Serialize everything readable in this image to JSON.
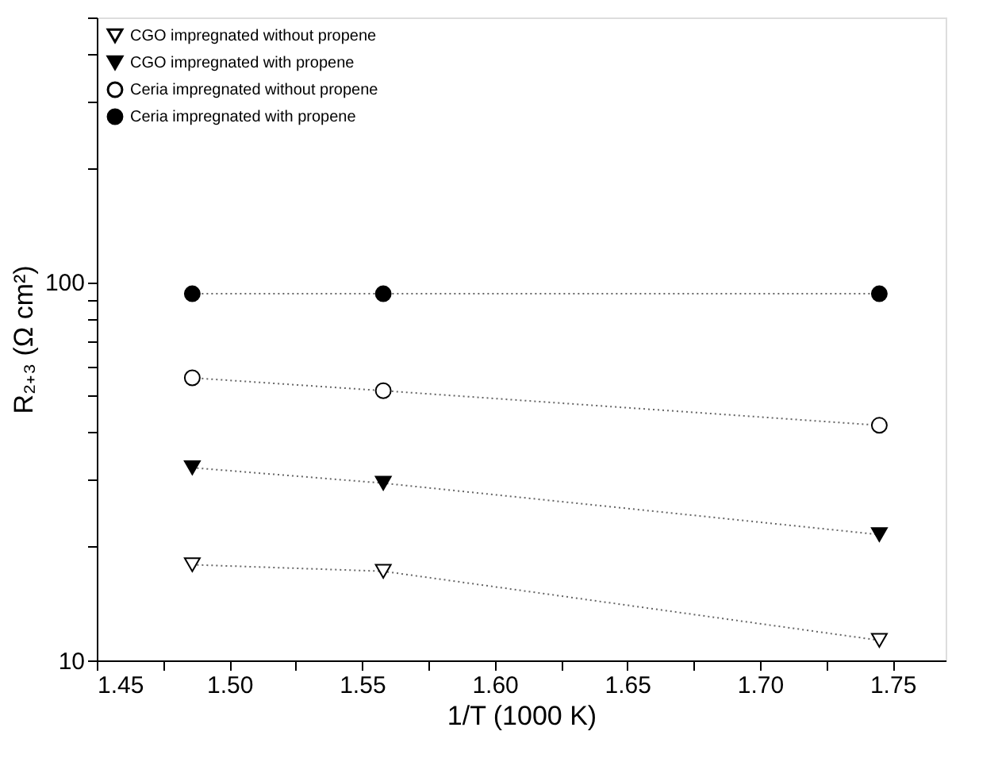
{
  "chart_data": {
    "type": "line",
    "xlabel": "1/T (1000 K)",
    "ylabel": "R₂₊₃ (Ω cm²)",
    "x": [
      1.486,
      1.558,
      1.745
    ],
    "series": [
      {
        "name": "CGO impregnated without propene",
        "color": "#ffffff",
        "marker": "triangle-down",
        "values": [
          17.9,
          17.2,
          11.3
        ]
      },
      {
        "name": "CGO impregnated with propene",
        "color": "#000000",
        "marker": "triangle-down",
        "values": [
          32.3,
          29.4,
          21.5
        ]
      },
      {
        "name": "Ceria impregnated without propene",
        "color": "#ffffff",
        "marker": "circle",
        "values": [
          55.8,
          51.6,
          41.8
        ]
      },
      {
        "name": "Ceria impregnated with propene",
        "color": "#000000",
        "marker": "circle",
        "values": [
          93.1,
          93.1,
          93.1
        ]
      }
    ],
    "xlim": [
      1.45,
      1.77
    ],
    "xticks": [
      1.45,
      {
        "value": 1.475,
        "label": null
      },
      {
        "value": 1.5,
        "label": "1.50"
      },
      {
        "value": 1.525,
        "label": null
      },
      1.55,
      {
        "value": 1.575,
        "label": null
      },
      {
        "value": 1.6,
        "label": "1.60"
      },
      {
        "value": 1.625,
        "label": null
      },
      1.65,
      {
        "value": 1.675,
        "label": null
      },
      {
        "value": 1.7,
        "label": "1.70"
      },
      {
        "value": 1.725,
        "label": null
      },
      1.75
    ],
    "ylim": [
      10,
      500
    ],
    "yticks": [
      10,
      {
        "value": 20,
        "label": null
      },
      {
        "value": 30,
        "label": null
      },
      {
        "value": 40,
        "label": null
      },
      {
        "value": 50,
        "label": null
      },
      {
        "value": 60,
        "label": null
      },
      {
        "value": 70,
        "label": null
      },
      {
        "value": 80,
        "label": null
      },
      {
        "value": 90,
        "label": null
      },
      100,
      {
        "value": 200,
        "label": null
      },
      {
        "value": 300,
        "label": null
      },
      {
        "value": 400,
        "label": null
      },
      {
        "value": 500,
        "label": null
      }
    ],
    "log": "y",
    "grid": false,
    "legend": "top left",
    "line_style": "dotted"
  }
}
